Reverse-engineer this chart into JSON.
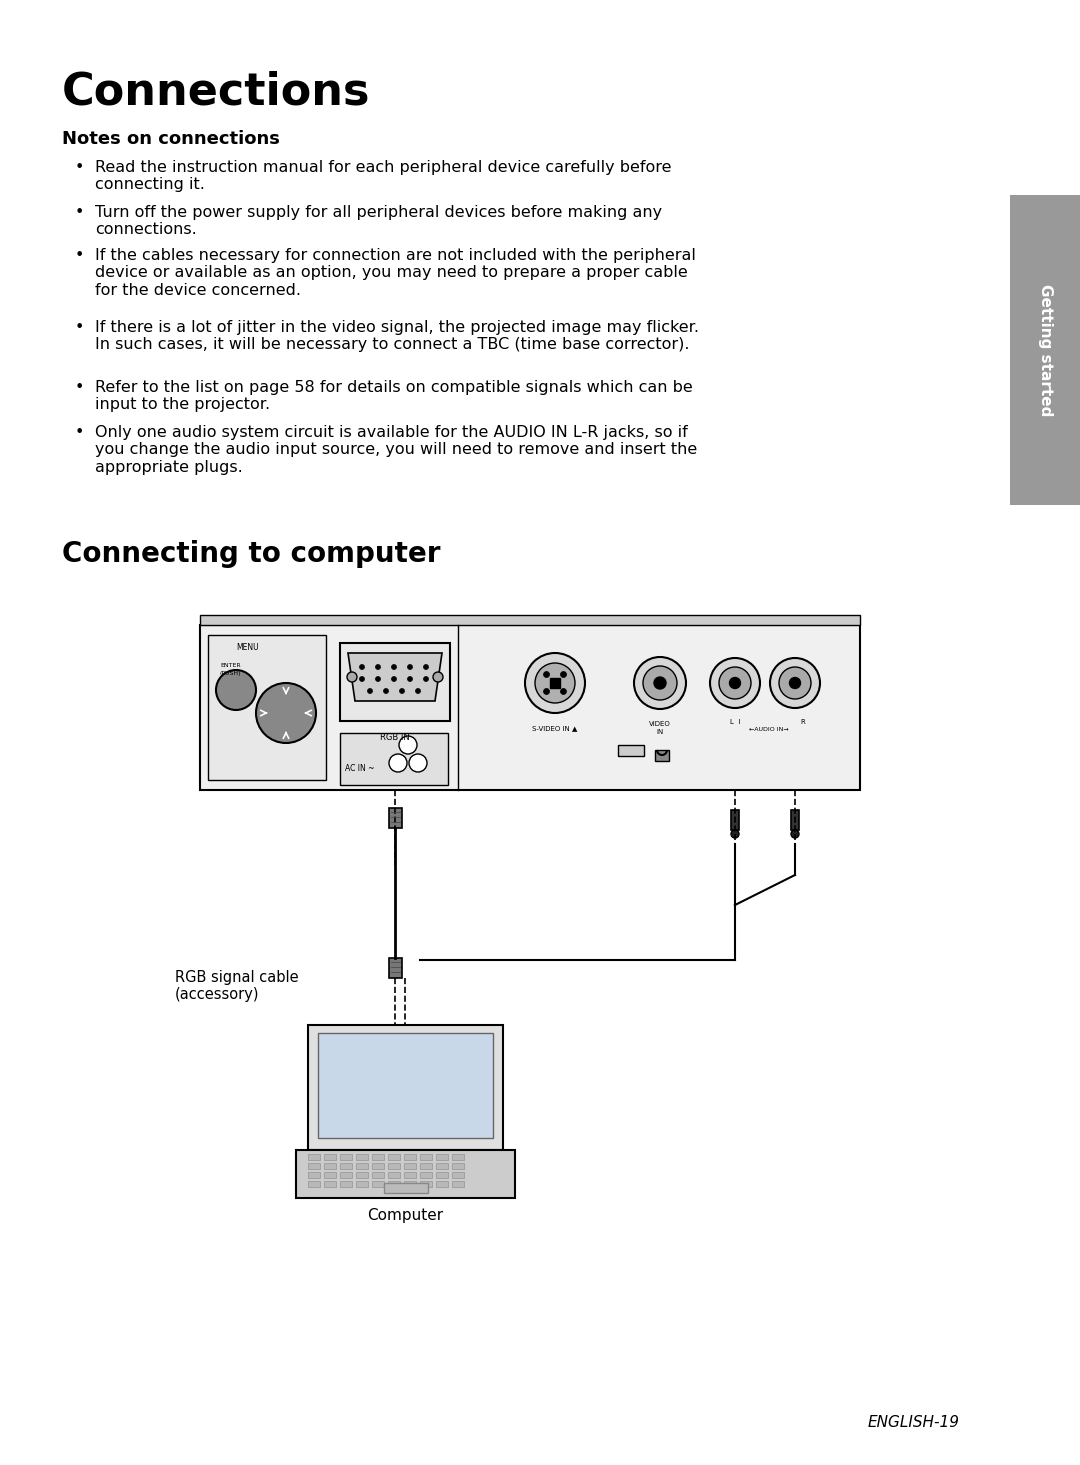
{
  "page_bg": "#ffffff",
  "title": "Connections",
  "title_fontsize": 32,
  "title_bold": true,
  "subtitle": "Notes on connections",
  "subtitle_fontsize": 13,
  "body_fontsize": 11.5,
  "bullets": [
    "Read the instruction manual for each peripheral device carefully before\nconnecting it.",
    "Turn off the power supply for all peripheral devices before making any\nconnections.",
    "If the cables necessary for connection are not included with the peripheral\ndevice or available as an option, you may need to prepare a proper cable\nfor the device concerned.",
    "If there is a lot of jitter in the video signal, the projected image may flicker.\nIn such cases, it will be necessary to connect a TBC (time base corrector).",
    "Refer to the list on page 58 for details on compatible signals which can be\ninput to the projector.",
    "Only one audio system circuit is available for the AUDIO IN L-R jacks, so if\nyou change the audio input source, you will need to remove and insert the\nappropriate plugs."
  ],
  "section2_title": "Connecting to computer",
  "section2_fontsize": 20,
  "rgb_label": "RGB signal cable\n(accessory)",
  "computer_label": "Computer",
  "english_label": "ENGLISH-19",
  "sidebar_text": "Getting started",
  "sidebar_color": "#999999",
  "sidebar_text_color": "#ffffff"
}
